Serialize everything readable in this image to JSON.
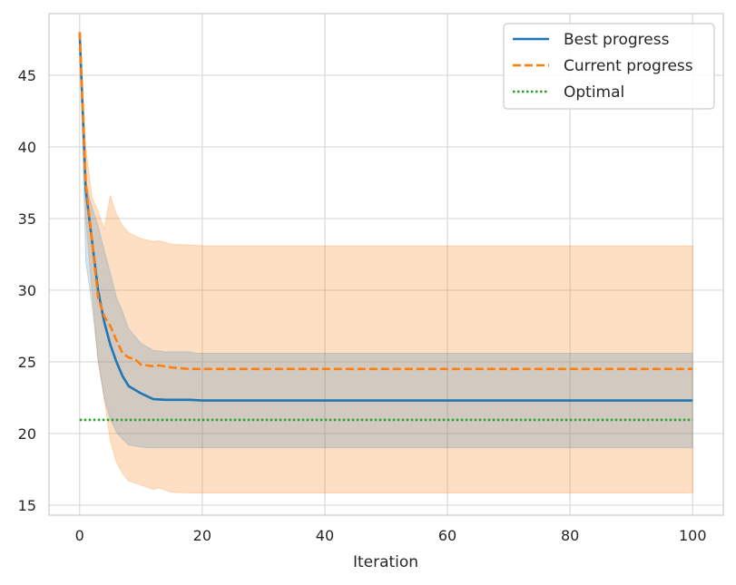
{
  "chart_data": {
    "type": "line",
    "title": "",
    "xlabel": "Iteration",
    "ylabel": "",
    "xlim": [
      -5,
      105
    ],
    "ylim": [
      14.3,
      49.3
    ],
    "xticks": [
      0,
      20,
      40,
      60,
      80,
      100
    ],
    "yticks": [
      15,
      20,
      25,
      30,
      35,
      40,
      45
    ],
    "grid": true,
    "legend_position": "top-right",
    "series": [
      {
        "name": "Best progress",
        "style": "solid",
        "color": "#1f77b4",
        "points": [
          [
            0,
            48
          ],
          [
            1,
            37
          ],
          [
            2,
            33.5
          ],
          [
            3,
            30
          ],
          [
            4,
            27.8
          ],
          [
            5,
            26.2
          ],
          [
            6,
            25
          ],
          [
            7,
            24
          ],
          [
            8,
            23.3
          ],
          [
            10,
            22.8
          ],
          [
            12,
            22.4
          ],
          [
            14,
            22.35
          ],
          [
            18,
            22.35
          ],
          [
            20,
            22.3
          ],
          [
            100,
            22.3
          ]
        ],
        "band": {
          "color": "#1f77b4",
          "upper": [
            [
              0,
              48
            ],
            [
              1,
              37.5
            ],
            [
              2,
              35.8
            ],
            [
              3,
              34.5
            ],
            [
              4,
              32.8
            ],
            [
              5,
              31.2
            ],
            [
              6,
              29.5
            ],
            [
              7,
              28.5
            ],
            [
              8,
              27.3
            ],
            [
              10,
              26.3
            ],
            [
              12,
              25.8
            ],
            [
              14,
              25.7
            ],
            [
              18,
              25.7
            ],
            [
              19,
              25.6
            ],
            [
              100,
              25.6
            ]
          ],
          "lower": [
            [
              0,
              48
            ],
            [
              1,
              32
            ],
            [
              2,
              29
            ],
            [
              3,
              25.2
            ],
            [
              4,
              22.5
            ],
            [
              5,
              21
            ],
            [
              6,
              20.1
            ],
            [
              7,
              19.6
            ],
            [
              8,
              19.2
            ],
            [
              10,
              19.05
            ],
            [
              12,
              19
            ],
            [
              100,
              19
            ]
          ]
        }
      },
      {
        "name": "Current progress",
        "style": "dashed",
        "color": "#ff7f0e",
        "points": [
          [
            0,
            48
          ],
          [
            1,
            37.5
          ],
          [
            2,
            33.5
          ],
          [
            3,
            29.5
          ],
          [
            4,
            28.2
          ],
          [
            5,
            27.5
          ],
          [
            6,
            26.5
          ],
          [
            7,
            25.6
          ],
          [
            8,
            25.3
          ],
          [
            9,
            25.2
          ],
          [
            10,
            24.8
          ],
          [
            12,
            24.7
          ],
          [
            13,
            24.75
          ],
          [
            15,
            24.6
          ],
          [
            18,
            24.5
          ],
          [
            20,
            24.5
          ],
          [
            100,
            24.5
          ]
        ],
        "band": {
          "color": "#ff7f0e",
          "upper": [
            [
              0,
              48
            ],
            [
              1,
              40
            ],
            [
              2,
              36.5
            ],
            [
              3,
              35.5
            ],
            [
              4,
              34.3
            ],
            [
              5,
              36.6
            ],
            [
              6,
              35.3
            ],
            [
              7,
              34.5
            ],
            [
              8,
              34
            ],
            [
              10,
              33.6
            ],
            [
              12,
              33.4
            ],
            [
              13,
              33.45
            ],
            [
              15,
              33.2
            ],
            [
              18,
              33.15
            ],
            [
              20,
              33.1
            ],
            [
              100,
              33.1
            ]
          ],
          "lower": [
            [
              0,
              48
            ],
            [
              1,
              35
            ],
            [
              2,
              30
            ],
            [
              3,
              25
            ],
            [
              4,
              22.5
            ],
            [
              5,
              19.5
            ],
            [
              6,
              18
            ],
            [
              7,
              17.2
            ],
            [
              8,
              16.7
            ],
            [
              10,
              16.4
            ],
            [
              12,
              16.1
            ],
            [
              13,
              16.2
            ],
            [
              15,
              15.9
            ],
            [
              18,
              15.85
            ],
            [
              100,
              15.85
            ]
          ]
        }
      },
      {
        "name": "Optimal",
        "style": "dotted",
        "color": "#2ca02c",
        "points": [
          [
            0,
            20.95
          ],
          [
            100,
            20.95
          ]
        ]
      }
    ]
  }
}
